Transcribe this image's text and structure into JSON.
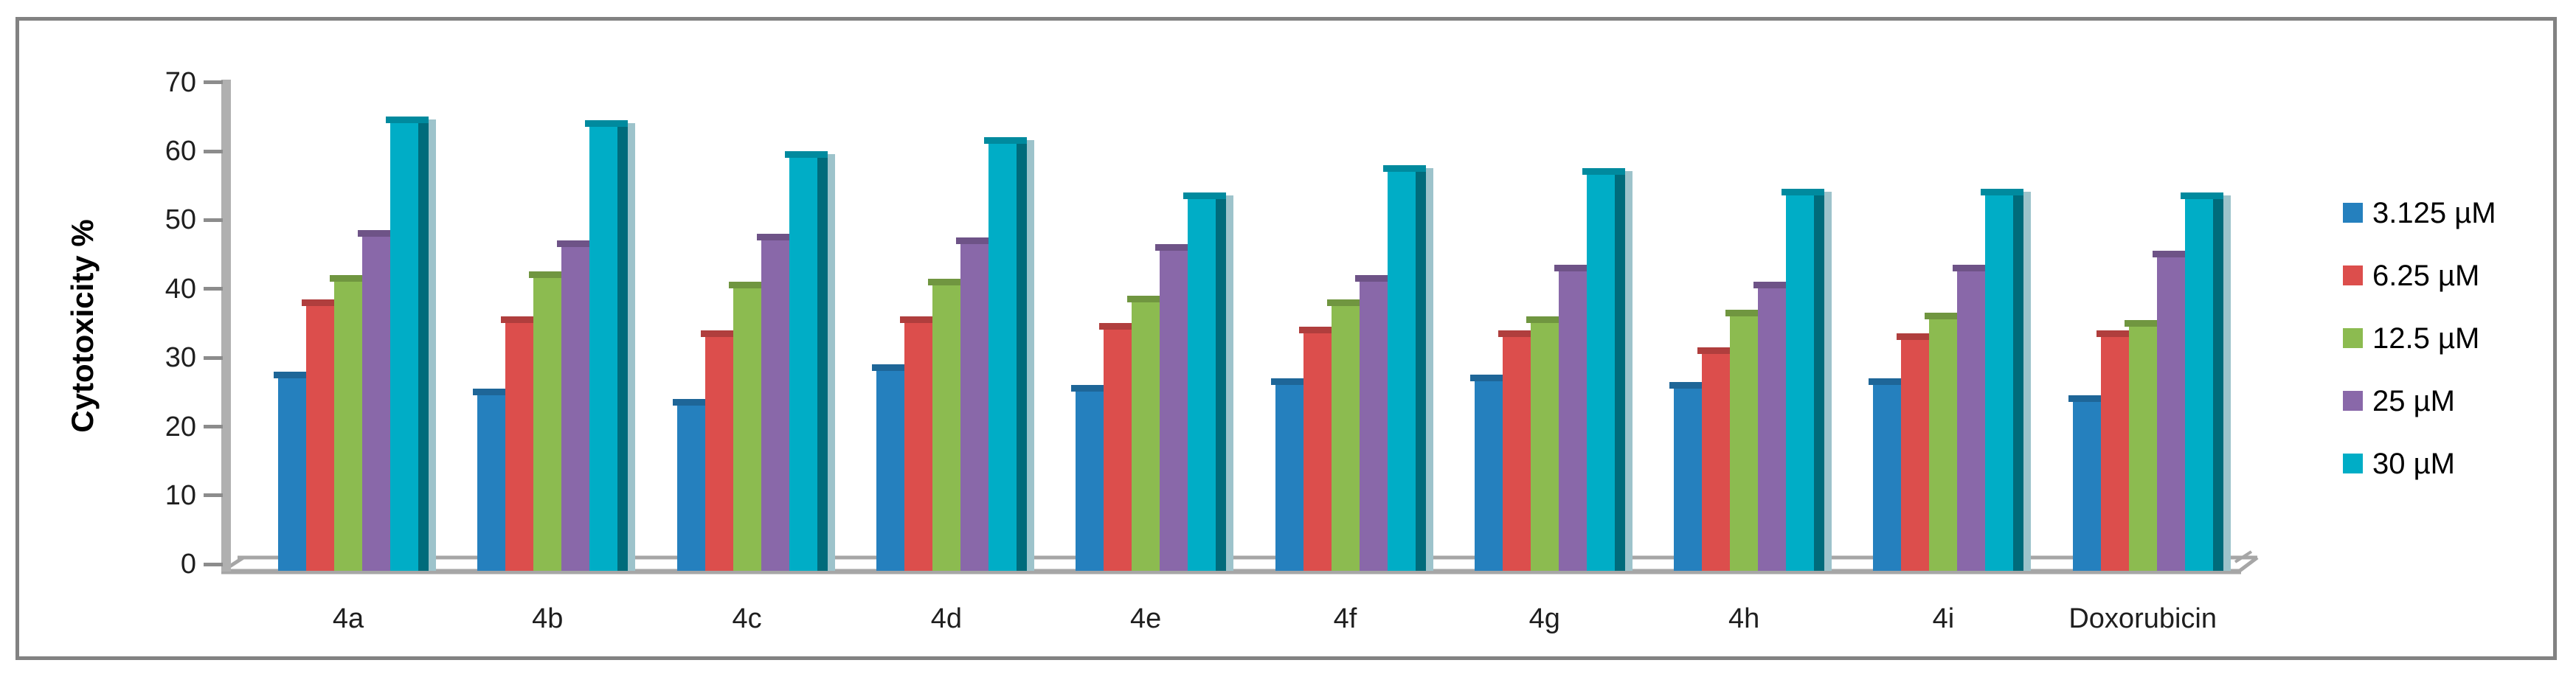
{
  "figure": {
    "y_axis_title": "Cytotoxicity %",
    "border_color": "#828282",
    "axis_wall_color": "#b0b0b0",
    "floor_line_color": "#a6a6a6"
  },
  "y_axis": {
    "min": 0,
    "max": 70,
    "step": 10,
    "tick_labels": [
      "0",
      "10",
      "20",
      "30",
      "40",
      "50",
      "60",
      "70"
    ]
  },
  "legend": {
    "position": "right",
    "items": [
      {
        "label": "3.125 µM",
        "color": "#2580be"
      },
      {
        "label": "6.25 µM",
        "color": "#dc4e4c"
      },
      {
        "label": "12.5 µM",
        "color": "#8cbb50"
      },
      {
        "label": "25 µM",
        "color": "#8968a9"
      },
      {
        "label": "30 µM",
        "color": "#00adc6"
      }
    ]
  },
  "chart_data": {
    "type": "bar",
    "style": "3d-clustered-column",
    "title": "",
    "xlabel": "",
    "ylabel": "Cytotoxicity %",
    "ylim": [
      0,
      70
    ],
    "grid": false,
    "legend_position": "right",
    "categories": [
      "4a",
      "4b",
      "4c",
      "4d",
      "4e",
      "4f",
      "4g",
      "4h",
      "4i",
      "Doxorubicin"
    ],
    "series": [
      {
        "name": "3.125 µM",
        "color": "#2580be",
        "values": [
          28,
          25.5,
          24,
          29,
          26,
          27,
          27.5,
          26.5,
          27,
          24.5
        ]
      },
      {
        "name": "6.25 µM",
        "color": "#dc4e4c",
        "values": [
          38.5,
          36,
          34,
          36,
          35,
          34.5,
          34,
          31.5,
          33.5,
          34
        ]
      },
      {
        "name": "12.5 µM",
        "color": "#8cbb50",
        "values": [
          42,
          42.5,
          41,
          41.5,
          39,
          38.5,
          36,
          37,
          36.5,
          35.5
        ]
      },
      {
        "name": "25 µM",
        "color": "#8968a9",
        "values": [
          48.5,
          47,
          48,
          47.5,
          46.5,
          42,
          43.5,
          41,
          43.5,
          45.5
        ]
      },
      {
        "name": "30 µM",
        "color": "#00adc6",
        "values": [
          65,
          64.5,
          60,
          62,
          54,
          58,
          57.5,
          54.5,
          54.5,
          54
        ]
      }
    ]
  }
}
